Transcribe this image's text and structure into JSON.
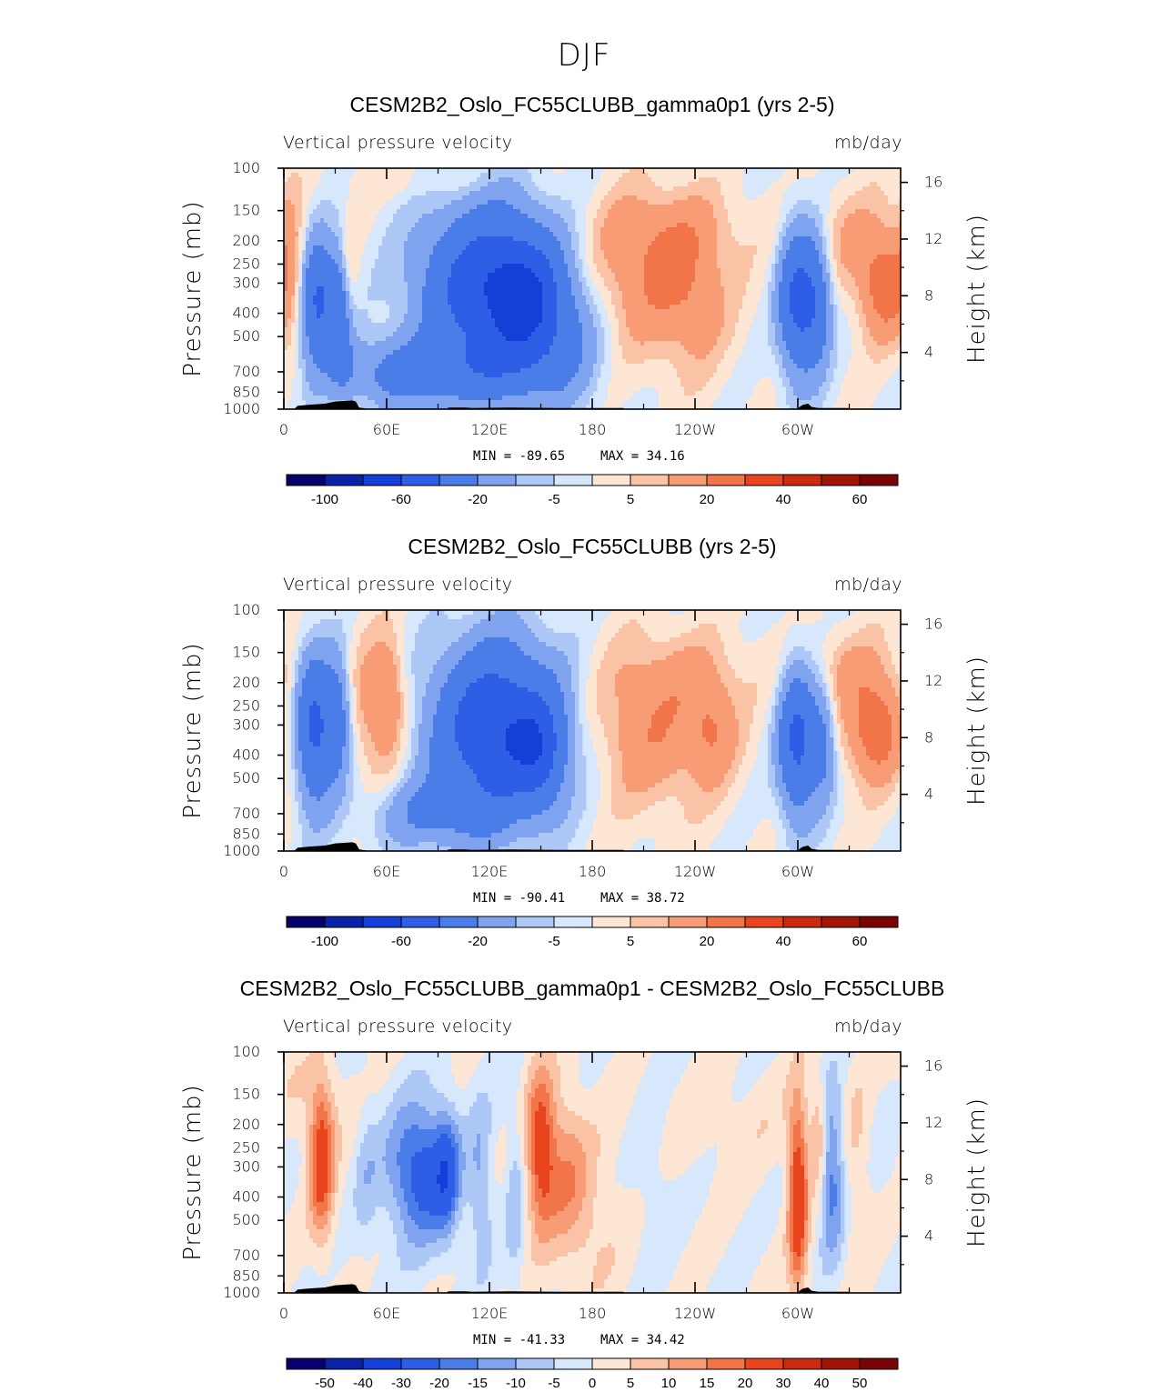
{
  "figure": {
    "title": "DJF"
  },
  "chart_data": [
    {
      "type": "heatmap",
      "title": "CESM2B2_Oslo_FC55CLUBB_gamma0p1 (yrs 2-5)",
      "left_string": "Vertical pressure velocity",
      "right_string": "mb/day",
      "xlabel": "",
      "ylabel": "Pressure (mb)",
      "y2label": "Height (km)",
      "xlim": [
        0,
        360
      ],
      "ylim": [
        1000,
        100
      ],
      "log_y": true,
      "x_ticks": [
        "0",
        "60E",
        "120E",
        "180",
        "120W",
        "60W"
      ],
      "y_ticks": [
        "100",
        "150",
        "200",
        "250",
        "300",
        "400",
        "500",
        "700",
        "850",
        "1000"
      ],
      "y2_ticks": [
        "16",
        "12",
        "8",
        "4"
      ],
      "min": -89.65,
      "max": 34.16,
      "min_text": "MIN = -89.65",
      "max_text": "MAX =  34.16",
      "colorbar_colors": [
        "#08006e",
        "#0a22a8",
        "#1440d8",
        "#2f5ee6",
        "#4a7de8",
        "#7fa3ef",
        "#adc8f6",
        "#d7e7fc",
        "#fde6d4",
        "#fbc3a6",
        "#f89c76",
        "#f2754a",
        "#e8451f",
        "#c92a10",
        "#a11507",
        "#7a0303"
      ],
      "colorbar_labels": [
        "-100",
        "-60",
        "-20",
        "-5",
        "5",
        "20",
        "40",
        "60"
      ]
    },
    {
      "type": "heatmap",
      "title": "CESM2B2_Oslo_FC55CLUBB (yrs 2-5)",
      "left_string": "Vertical pressure velocity",
      "right_string": "mb/day",
      "xlabel": "",
      "ylabel": "Pressure (mb)",
      "y2label": "Height (km)",
      "xlim": [
        0,
        360
      ],
      "ylim": [
        1000,
        100
      ],
      "log_y": true,
      "x_ticks": [
        "0",
        "60E",
        "120E",
        "180",
        "120W",
        "60W"
      ],
      "y_ticks": [
        "100",
        "150",
        "200",
        "250",
        "300",
        "400",
        "500",
        "700",
        "850",
        "1000"
      ],
      "y2_ticks": [
        "16",
        "12",
        "8",
        "4"
      ],
      "min": -90.41,
      "max": 38.72,
      "min_text": "MIN = -90.41",
      "max_text": "MAX =  38.72",
      "colorbar_colors": [
        "#08006e",
        "#0a22a8",
        "#1440d8",
        "#2f5ee6",
        "#4a7de8",
        "#7fa3ef",
        "#adc8f6",
        "#d7e7fc",
        "#fde6d4",
        "#fbc3a6",
        "#f89c76",
        "#f2754a",
        "#e8451f",
        "#c92a10",
        "#a11507",
        "#7a0303"
      ],
      "colorbar_labels": [
        "-100",
        "-60",
        "-20",
        "-5",
        "5",
        "20",
        "40",
        "60"
      ]
    },
    {
      "type": "heatmap",
      "title": "CESM2B2_Oslo_FC55CLUBB_gamma0p1 - CESM2B2_Oslo_FC55CLUBB",
      "left_string": "Vertical pressure velocity",
      "right_string": "mb/day",
      "xlabel": "",
      "ylabel": "Pressure (mb)",
      "y2label": "Height (km)",
      "xlim": [
        0,
        360
      ],
      "ylim": [
        1000,
        100
      ],
      "log_y": true,
      "x_ticks": [
        "0",
        "60E",
        "120E",
        "180",
        "120W",
        "60W"
      ],
      "y_ticks": [
        "100",
        "150",
        "200",
        "250",
        "300",
        "400",
        "500",
        "700",
        "850",
        "1000"
      ],
      "y2_ticks": [
        "16",
        "12",
        "8",
        "4"
      ],
      "min": -41.33,
      "max": 34.42,
      "min_text": "MIN = -41.33",
      "max_text": "MAX =  34.42",
      "colorbar_colors": [
        "#08006e",
        "#0a22a8",
        "#1440d8",
        "#2f5ee6",
        "#4a7de8",
        "#7fa3ef",
        "#adc8f6",
        "#d7e7fc",
        "#fde6d4",
        "#fbc3a6",
        "#f89c76",
        "#f2754a",
        "#e8451f",
        "#c92a10",
        "#a11507",
        "#7a0303"
      ],
      "colorbar_labels": [
        "-50",
        "-40",
        "-30",
        "-20",
        "-15",
        "-10",
        "-5",
        "0",
        "5",
        "10",
        "15",
        "20",
        "30",
        "40",
        "50"
      ]
    }
  ]
}
